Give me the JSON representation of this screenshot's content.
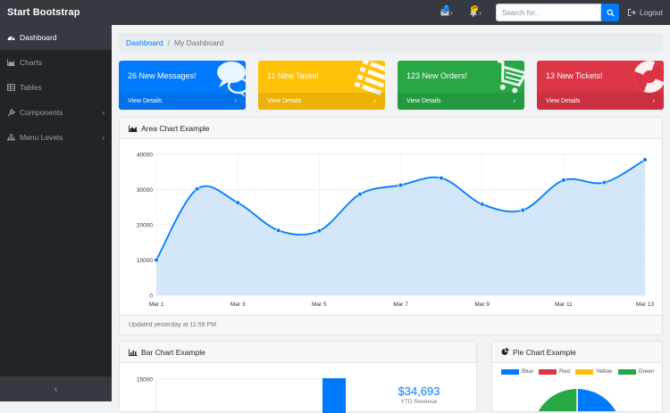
{
  "topbar": {
    "brand": "Start Bootstrap",
    "messages_badge": "7",
    "alerts_badge": "9+",
    "search_placeholder": "Search for...",
    "logout_label": "Logout"
  },
  "sidebar": {
    "items": [
      {
        "label": "Dashboard",
        "icon": "dashboard-icon"
      },
      {
        "label": "Charts",
        "icon": "area-chart-icon"
      },
      {
        "label": "Tables",
        "icon": "table-icon"
      },
      {
        "label": "Components",
        "icon": "wrench-icon"
      },
      {
        "label": "Menu Levels",
        "icon": "sitemap-icon"
      }
    ],
    "toggle_glyph": "‹"
  },
  "breadcrumb": {
    "root": "Dashboard",
    "separator": "/",
    "current": "My Dashboard"
  },
  "tiles": [
    {
      "text": "26 New Messages!",
      "footer": "View Details",
      "color": "#007bff",
      "icon": "comments-icon"
    },
    {
      "text": "11 New Tasks!",
      "footer": "View Details",
      "color": "#ffc107",
      "icon": "list-icon"
    },
    {
      "text": "123 New Orders!",
      "footer": "View Details",
      "color": "#28a745",
      "icon": "shopping-cart-icon"
    },
    {
      "text": "13 New Tickets!",
      "footer": "View Details",
      "color": "#dc3545",
      "icon": "life-ring-icon"
    }
  ],
  "area_panel": {
    "title": "Area Chart Example",
    "footer": "Updated yesterday at 11:59 PM"
  },
  "bar_panel": {
    "title": "Bar Chart Example",
    "revenue_value": "$34,693",
    "revenue_label": "YTD Revenue"
  },
  "pie_panel": {
    "title": "Pie Chart Example",
    "legend": [
      {
        "label": "Blue",
        "color": "#007bff"
      },
      {
        "label": "Red",
        "color": "#dc3545"
      },
      {
        "label": "Yellow",
        "color": "#ffc107"
      },
      {
        "label": "Green",
        "color": "#28a745"
      }
    ]
  },
  "chart_data": [
    {
      "type": "area",
      "title": "",
      "x": [
        "Mar 1",
        "Mar 2",
        "Mar 3",
        "Mar 4",
        "Mar 5",
        "Mar 6",
        "Mar 7",
        "Mar 8",
        "Mar 9",
        "Mar 10",
        "Mar 11",
        "Mar 12",
        "Mar 13"
      ],
      "x_tick_labels": [
        "Mar 1",
        "Mar 3",
        "Mar 5",
        "Mar 7",
        "Mar 9",
        "Mar 11",
        "Mar 13"
      ],
      "values": [
        10000,
        30162,
        26263,
        18394,
        18287,
        28682,
        31274,
        33259,
        25849,
        24159,
        32651,
        31984,
        38451
      ],
      "ylim": [
        0,
        40000
      ],
      "y_ticks": [
        0,
        10000,
        20000,
        30000,
        40000
      ],
      "grid": true,
      "line_color": "#007bff",
      "fill_color": "#cfe3f8"
    },
    {
      "type": "bar",
      "title": "",
      "y_ticks": [
        "15000"
      ],
      "visible_bar_color": "#007bff"
    },
    {
      "type": "pie",
      "title": "",
      "series": [
        "Blue",
        "Red",
        "Yellow",
        "Green"
      ],
      "colors": [
        "#007bff",
        "#dc3545",
        "#ffc107",
        "#28a745"
      ]
    }
  ]
}
